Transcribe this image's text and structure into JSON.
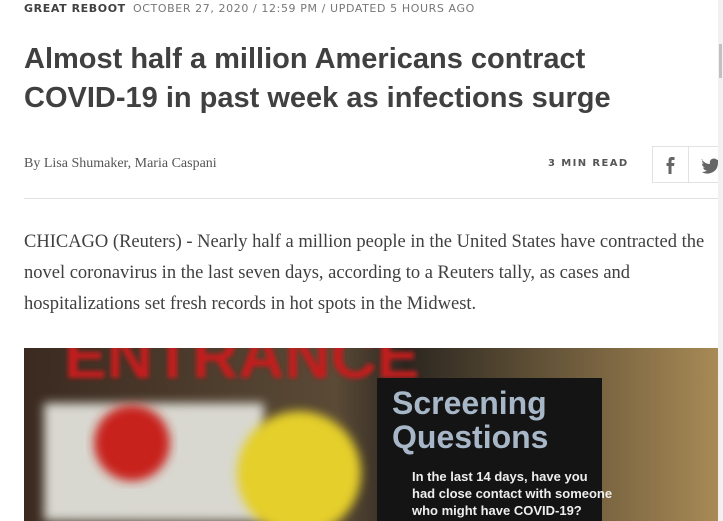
{
  "article": {
    "kicker": "GREAT REBOOT",
    "dateline": "OCTOBER 27, 2020 / 12:59 PM / UPDATED 5 HOURS AGO",
    "headline": "Almost half a million Americans contract COVID-19 in past week as infections surge",
    "byline": "By Lisa Shumaker, Maria Caspani",
    "read_time": "3 MIN READ",
    "body": "CHICAGO (Reuters) - Nearly half a million people in the United States have contracted the novel coronavirus in the last seven days, according to a Reuters tally, as cases and hospitalizations set fresh records in hot spots in the Midwest.",
    "image": {
      "sign_top": "ENTRANCE",
      "sign_title_1": "Screening",
      "sign_title_2": "Questions",
      "sign_line_1": "In the last 14 days, have you",
      "sign_line_2": "had close contact with someone",
      "sign_line_3": "who might have COVID-19?"
    }
  }
}
